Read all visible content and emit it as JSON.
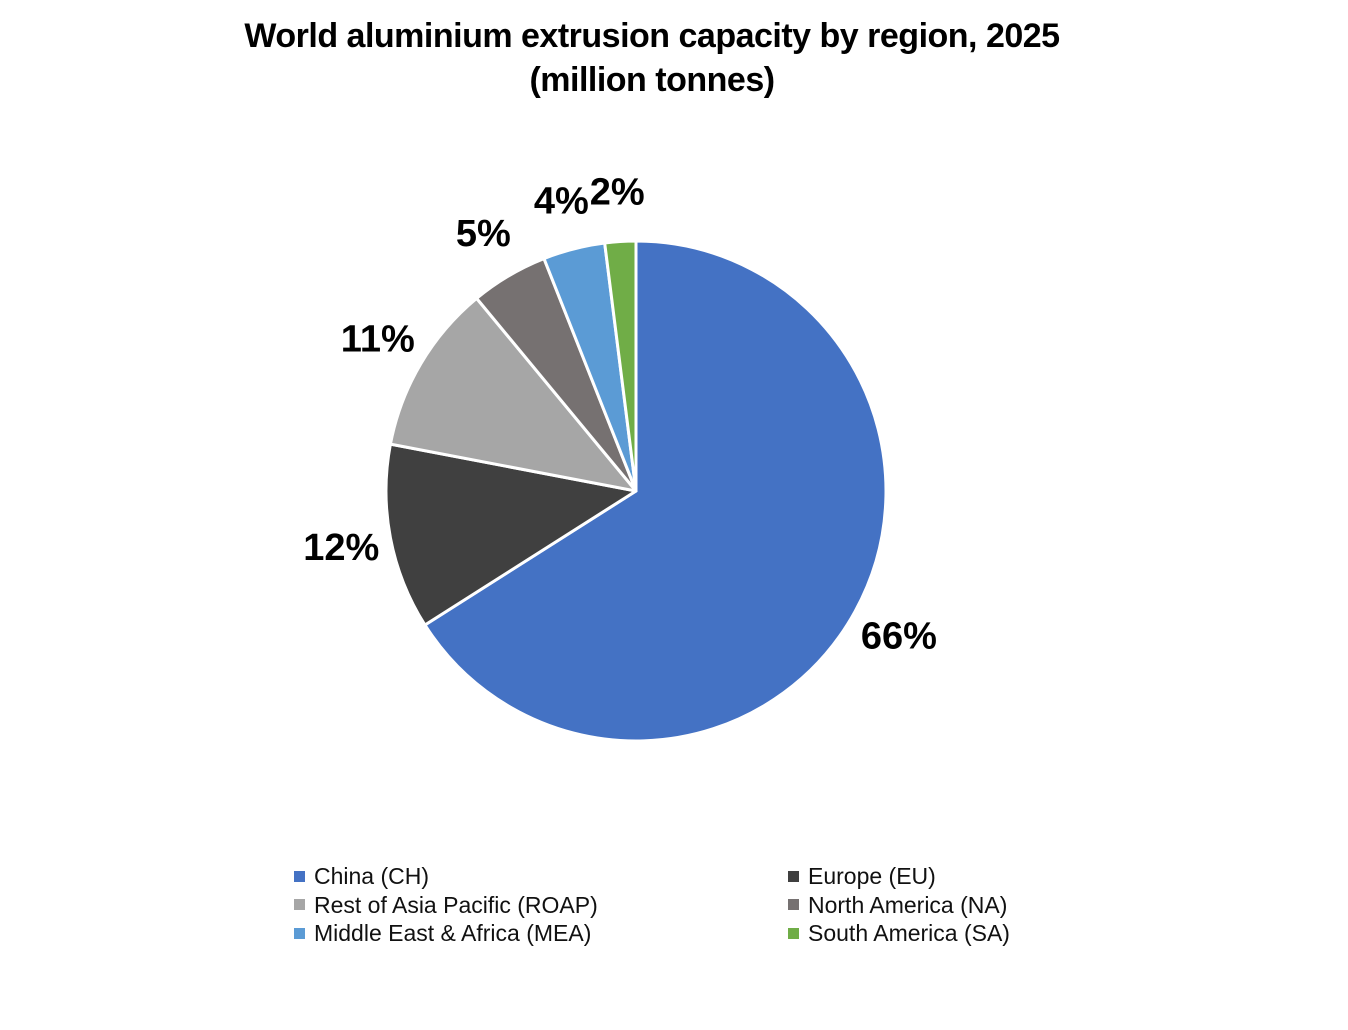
{
  "chart_data": {
    "type": "pie",
    "title": "World aluminium extrusion capacity by region, 2025",
    "subtitle": "(million tonnes)",
    "slices": [
      {
        "name": "China (CH)",
        "value": 66,
        "label": "66%",
        "color": "#4472C4"
      },
      {
        "name": "Europe (EU)",
        "value": 12,
        "label": "12%",
        "color": "#404040"
      },
      {
        "name": "Rest of Asia Pacific (ROAP)",
        "value": 11,
        "label": "11%",
        "color": "#A6A6A6"
      },
      {
        "name": "North America (NA)",
        "value": 5,
        "label": "5%",
        "color": "#767171"
      },
      {
        "name": "Middle East & Africa (MEA)",
        "value": 4,
        "label": "4%",
        "color": "#5B9BD5"
      },
      {
        "name": "South America (SA)",
        "value": 2,
        "label": "2%",
        "color": "#70AD47"
      }
    ],
    "legend_placement": "bottom",
    "legend_order": [
      "China (CH)",
      "Europe (EU)",
      "Rest of Asia Pacific (ROAP)",
      "North America (NA)",
      "Middle East & Africa (MEA)",
      "South America (SA)"
    ]
  }
}
